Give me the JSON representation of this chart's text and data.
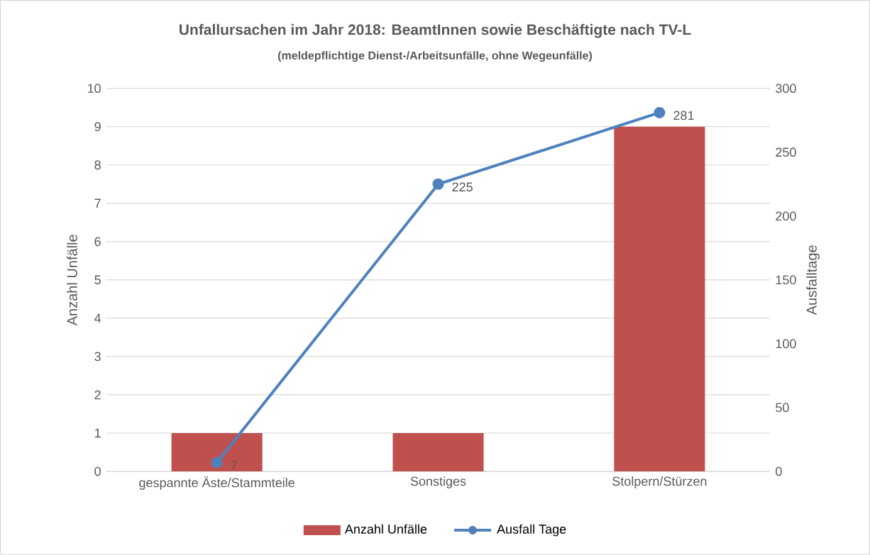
{
  "chart_data": {
    "type": "bar",
    "title": "Unfallursachen im Jahr 2018: BeamtInnen sowie Beschäftigte nach TV-L",
    "subtitle": "(meldepflichtige Dienst-/Arbeitsunfälle, ohne Wegeunfälle)",
    "ylabel": "Anzahl Unfälle",
    "y2label": "Ausfalltage",
    "categories": [
      "gespannte Äste/Stammteile",
      "Sonstiges",
      "Stolpern/Stürzen"
    ],
    "series": [
      {
        "name": "Anzahl Unfälle",
        "color": "#c0504d",
        "values": [
          1,
          1,
          9
        ]
      },
      {
        "name": "Ausfall Tage",
        "type": "line",
        "axis": "y2",
        "color": "#4f81bd",
        "values": [
          7,
          225,
          281
        ],
        "value_labels": [
          "7",
          "225",
          "281"
        ]
      }
    ],
    "ylim": [
      0,
      10
    ],
    "yticks": [
      0,
      1,
      2,
      3,
      4,
      5,
      6,
      7,
      8,
      9,
      10
    ],
    "y2lim": [
      0,
      300
    ],
    "y2ticks": [
      0,
      50,
      100,
      150,
      200,
      250,
      300
    ],
    "grid": "y",
    "legend": "bottom",
    "marker": "circle",
    "line_style": "solid"
  }
}
